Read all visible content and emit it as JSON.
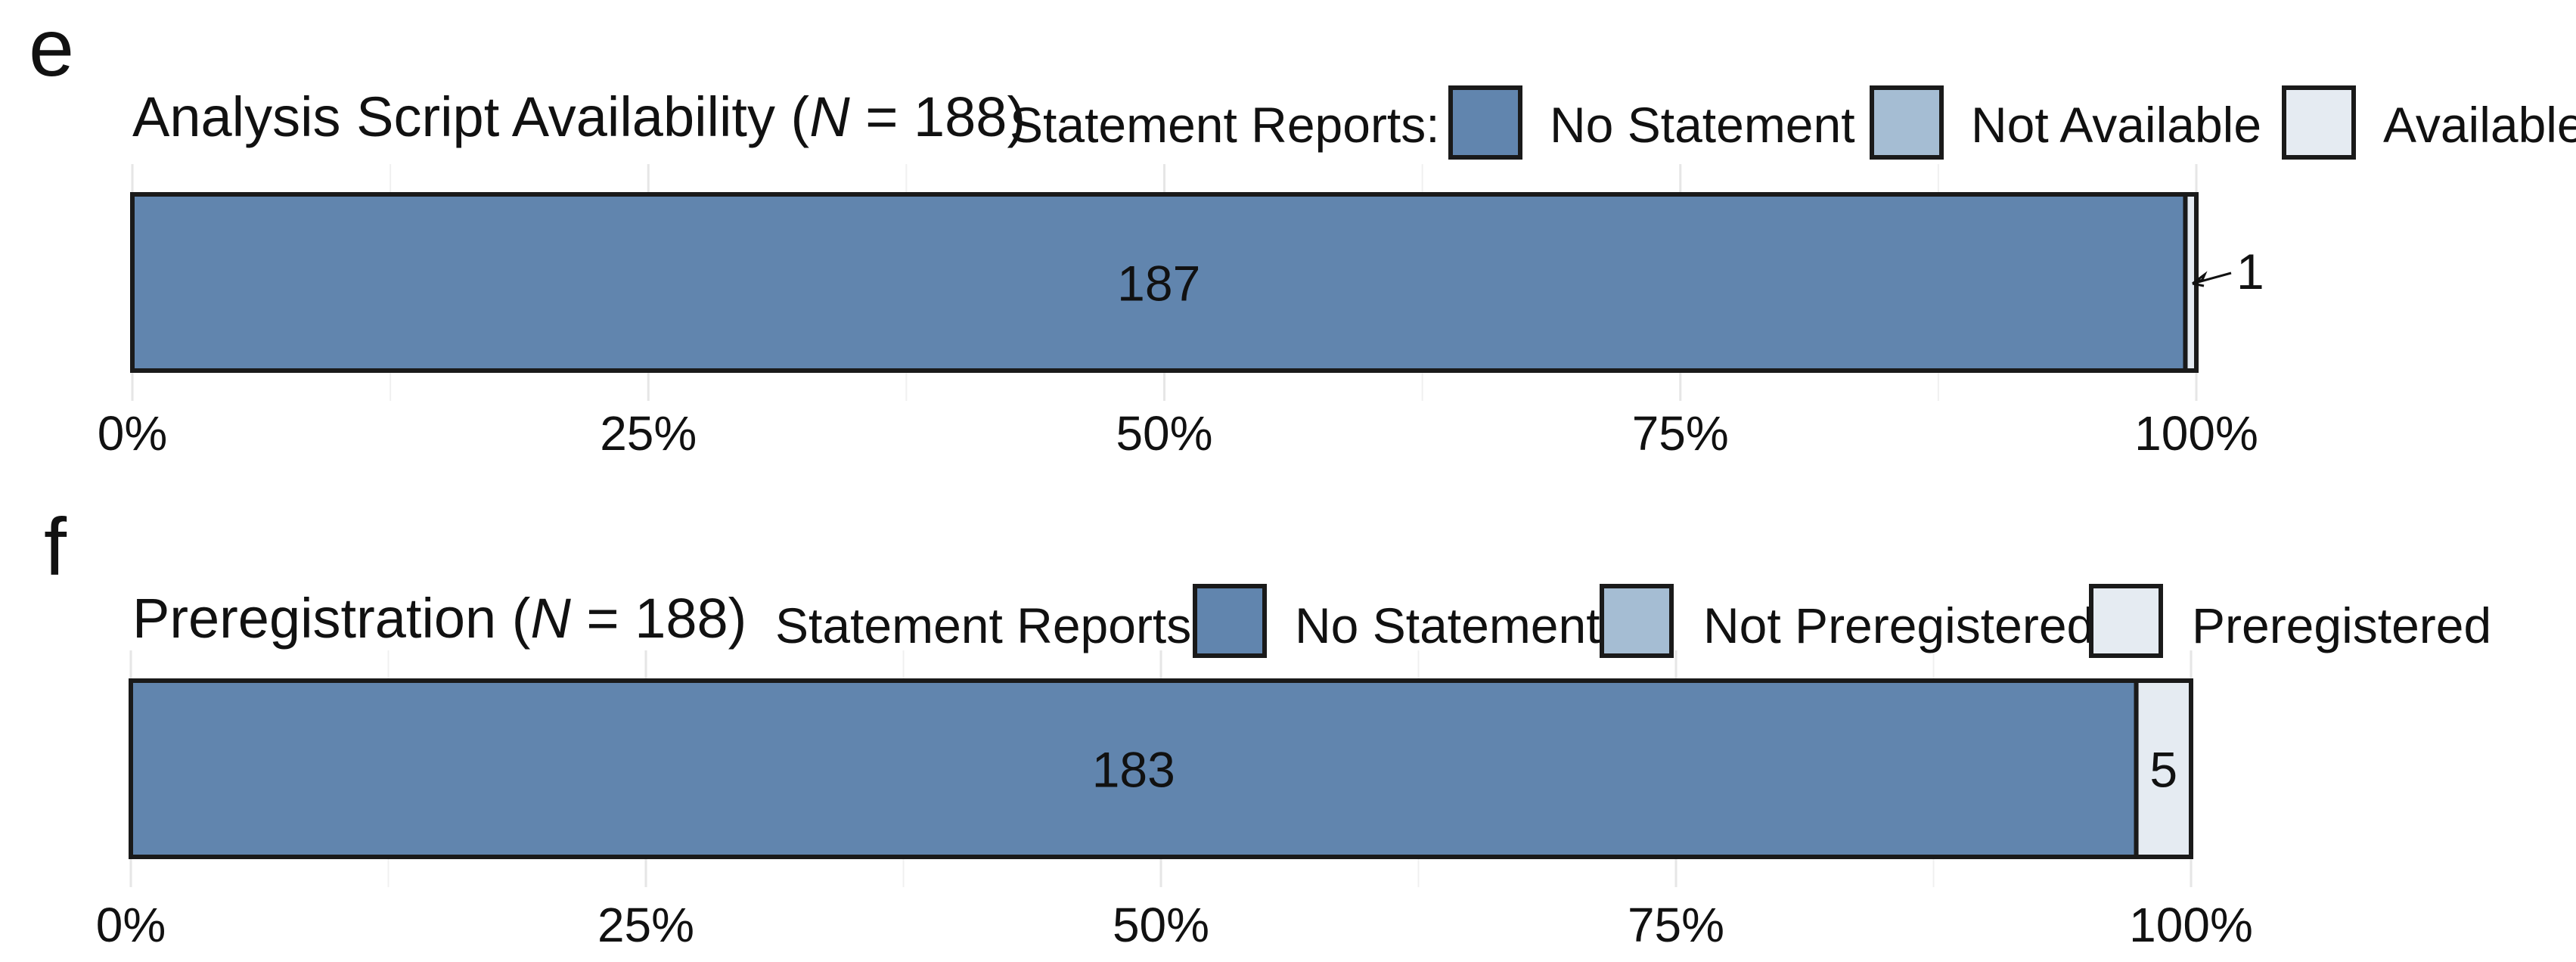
{
  "chart_data": [
    {
      "type": "bar",
      "orientation": "horizontal",
      "stacked": true,
      "panel_letter": "e",
      "title_prefix": "Analysis Script Availability (",
      "title_n_symbol": "N",
      "title_suffix": " = 188)",
      "legend_title": "Statement Reports:",
      "legend_position": "top-right",
      "series": [
        {
          "name": "No Statement",
          "value": 187,
          "color": "#6185AE"
        },
        {
          "name": "Not Available",
          "value": 0,
          "color": "#A5BDD3"
        },
        {
          "name": "Available",
          "value": 1,
          "color": "#E5EBF2"
        }
      ],
      "bar_labels": [
        "187",
        "",
        "1"
      ],
      "outside_label": "1",
      "total": 188,
      "xlim": [
        0,
        100
      ],
      "x_ticks": [
        "0%",
        "25%",
        "50%",
        "75%",
        "100%"
      ],
      "grid": true
    },
    {
      "type": "bar",
      "orientation": "horizontal",
      "stacked": true,
      "panel_letter": "f",
      "title_prefix": "Preregistration (",
      "title_n_symbol": "N",
      "title_suffix": " = 188)",
      "legend_title": "Statement Reports:",
      "legend_position": "top-right",
      "series": [
        {
          "name": "No Statement",
          "value": 183,
          "color": "#6185AE"
        },
        {
          "name": "Not Preregistered",
          "value": 0,
          "color": "#A5BDD3"
        },
        {
          "name": "Preregistered",
          "value": 5,
          "color": "#E5EBF2"
        }
      ],
      "bar_labels": [
        "183",
        "",
        "5"
      ],
      "outside_label": "",
      "total": 188,
      "xlim": [
        0,
        100
      ],
      "x_ticks": [
        "0%",
        "25%",
        "50%",
        "75%",
        "100%"
      ],
      "grid": true
    }
  ]
}
